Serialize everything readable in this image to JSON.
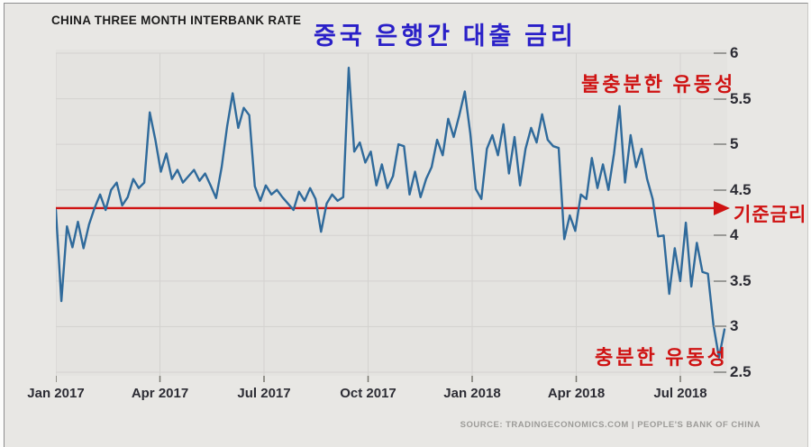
{
  "header": {
    "title_en": "CHINA THREE MONTH INTERBANK RATE",
    "title_ko": "중국 은행간 대출 금리"
  },
  "annotations": {
    "insufficient_liquidity": "불충분한 유동성",
    "sufficient_liquidity": "충분한 유동성",
    "baseline_label": "기준금리"
  },
  "source": "SOURCE: TRADINGECONOMICS.COM | PEOPLE'S BANK OF CHINA",
  "colors": {
    "panel_bg": "#e8e7e4",
    "plot_bg": "#e4e3e0",
    "grid": "#d3d2cf",
    "line": "#2f6a9b",
    "baseline": "#cf1212",
    "annotation_red": "#cf1212",
    "title_blue": "#2a20c8",
    "axis_text": "#2c2c34",
    "tick": "#77766f",
    "source_text": "#9c9b98"
  },
  "chart_data": {
    "type": "line",
    "title": "CHINA THREE MONTH INTERBANK RATE",
    "xlabel": "",
    "ylabel": "",
    "x_range": [
      "Jan 2017",
      "Aug 2018"
    ],
    "x_frequency": "approximately weekly",
    "x_tick_labels": [
      "Jan 2017",
      "Apr 2017",
      "Jul 2017",
      "Oct 2017",
      "Jan 2018",
      "Apr 2018",
      "Jul 2018"
    ],
    "y_ticks": [
      6,
      5.5,
      5,
      4.5,
      4,
      3.5,
      3,
      2.5
    ],
    "ylim": [
      2.5,
      6
    ],
    "grid": true,
    "legend": "none",
    "y_axis_side": "right",
    "baseline": {
      "value": 4.3,
      "label": "기준금리"
    },
    "series": [
      {
        "name": "China 3M interbank rate (%)",
        "values": [
          4.28,
          3.28,
          4.1,
          3.87,
          4.15,
          3.86,
          4.12,
          4.3,
          4.45,
          4.28,
          4.5,
          4.58,
          4.33,
          4.42,
          4.62,
          4.52,
          4.58,
          5.35,
          5.05,
          4.7,
          4.9,
          4.62,
          4.72,
          4.58,
          4.65,
          4.72,
          4.6,
          4.68,
          4.55,
          4.41,
          4.75,
          5.2,
          5.56,
          5.18,
          5.4,
          5.32,
          4.54,
          4.38,
          4.55,
          4.45,
          4.5,
          4.42,
          4.35,
          4.28,
          4.48,
          4.38,
          4.52,
          4.4,
          4.04,
          4.35,
          4.45,
          4.38,
          4.42,
          5.84,
          4.92,
          5.02,
          4.8,
          4.92,
          4.55,
          4.78,
          4.52,
          4.65,
          5.0,
          4.98,
          4.45,
          4.7,
          4.42,
          4.62,
          4.75,
          5.05,
          4.88,
          5.28,
          5.08,
          5.32,
          5.58,
          5.12,
          4.51,
          4.4,
          4.95,
          5.1,
          4.88,
          5.22,
          4.68,
          5.08,
          4.55,
          4.95,
          5.18,
          5.02,
          5.33,
          5.05,
          4.98,
          4.96,
          3.96,
          4.22,
          4.05,
          4.45,
          4.4,
          4.85,
          4.52,
          4.78,
          4.5,
          4.9,
          5.42,
          4.58,
          5.1,
          4.75,
          4.95,
          4.62,
          4.4,
          3.99,
          4.0,
          3.36,
          3.86,
          3.5,
          4.14,
          3.44,
          3.92,
          3.6,
          3.58,
          3.02,
          2.66,
          2.97
        ]
      }
    ]
  }
}
